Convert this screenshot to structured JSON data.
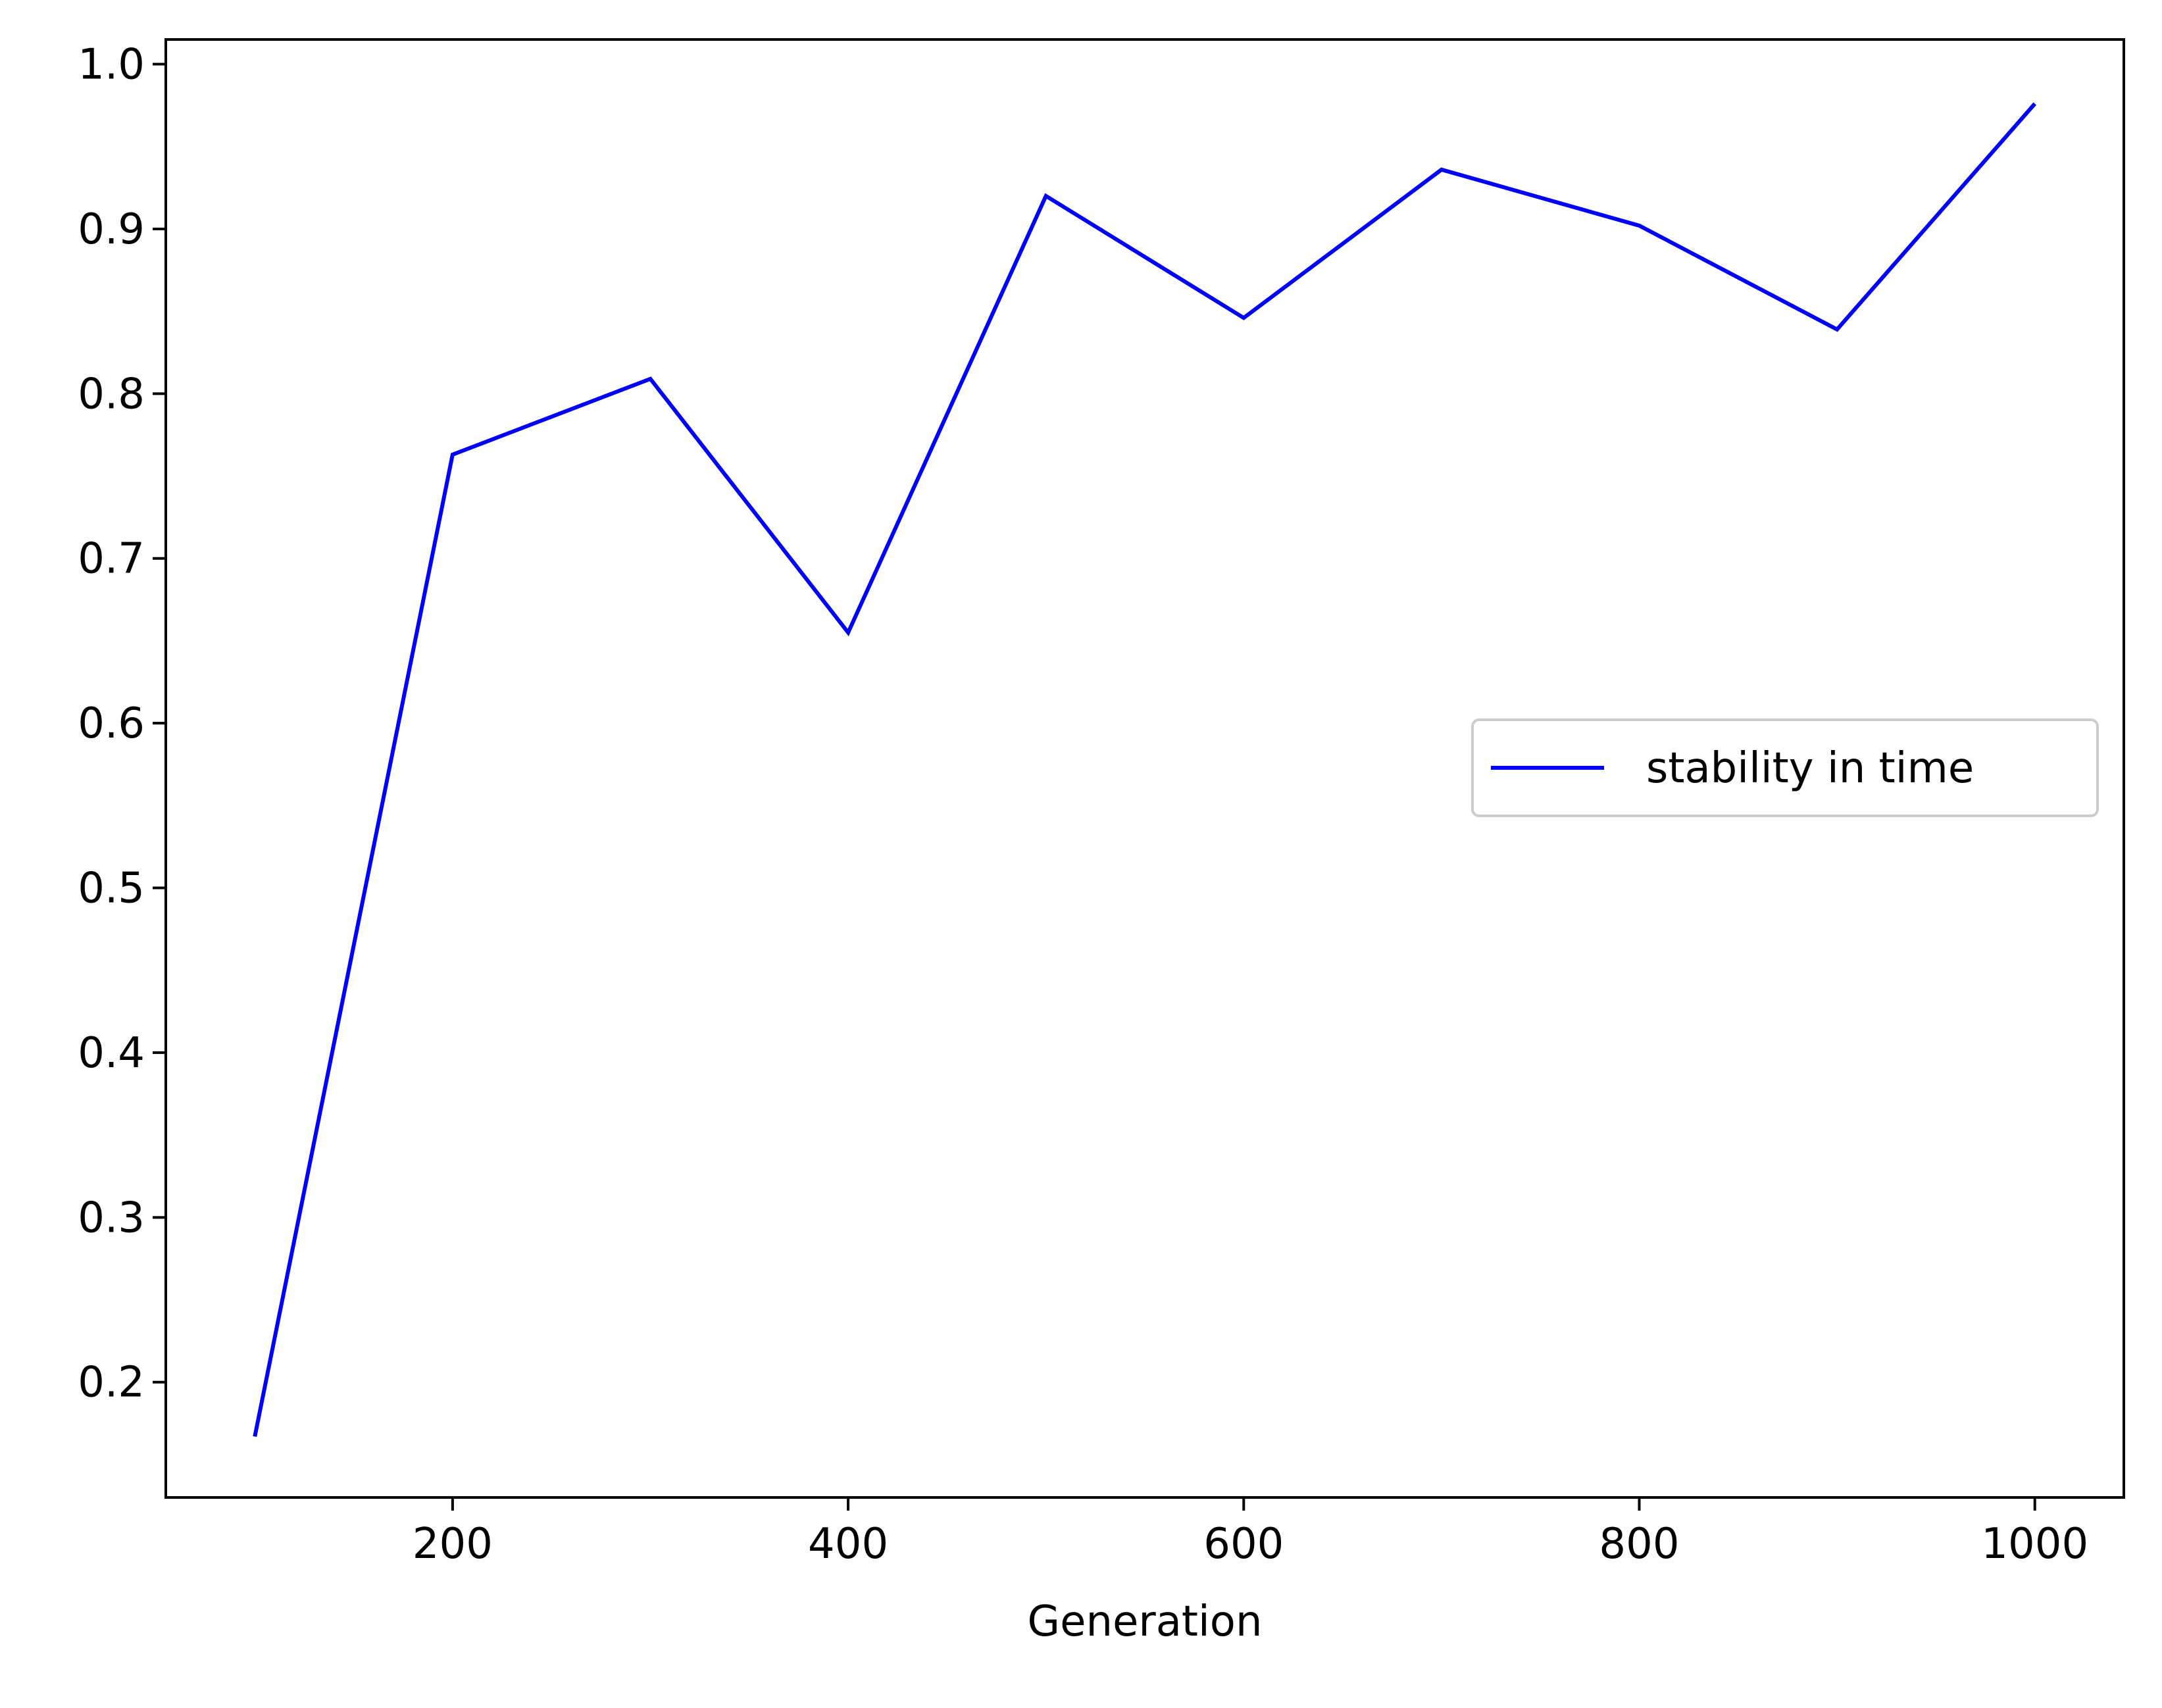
{
  "chart_data": {
    "type": "line",
    "title": "",
    "xlabel": "Generation",
    "ylabel": "",
    "xlim": [
      55,
      1045
    ],
    "ylim": [
      0.13,
      1.015
    ],
    "x_ticks": [
      200,
      400,
      600,
      800,
      1000
    ],
    "x_tick_labels": [
      "200",
      "400",
      "600",
      "800",
      "1000"
    ],
    "y_ticks": [
      0.2,
      0.3,
      0.4,
      0.5,
      0.6,
      0.7,
      0.8,
      0.9,
      1.0
    ],
    "y_tick_labels": [
      "0.2",
      "0.3",
      "0.4",
      "0.5",
      "0.6",
      "0.7",
      "0.8",
      "0.9",
      "1.0"
    ],
    "grid": false,
    "legend_position": "center-right",
    "series": [
      {
        "name": "stability in time",
        "color": "#0000ff",
        "x": [
          100,
          200,
          300,
          400,
          500,
          600,
          700,
          800,
          900,
          1000
        ],
        "y": [
          0.167,
          0.763,
          0.809,
          0.655,
          0.92,
          0.846,
          0.936,
          0.902,
          0.839,
          0.976
        ]
      }
    ]
  }
}
